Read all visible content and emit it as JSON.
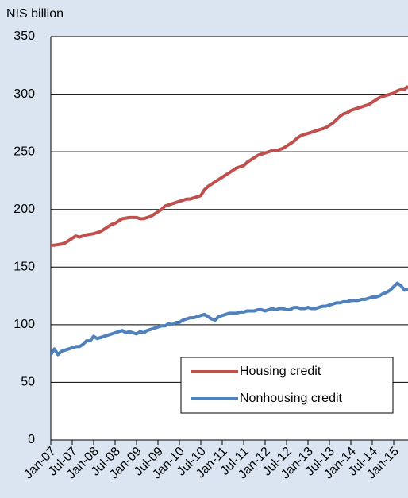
{
  "chart_data": {
    "type": "line",
    "ylabel": "NIS billion",
    "categories": [
      "Jan-07",
      null,
      null,
      null,
      null,
      null,
      "Jul-07",
      null,
      null,
      null,
      null,
      null,
      "Jan-08",
      null,
      null,
      null,
      null,
      null,
      "Jul-08",
      null,
      null,
      null,
      null,
      null,
      "Jan-09",
      null,
      null,
      null,
      null,
      null,
      "Jul-09",
      null,
      null,
      null,
      null,
      null,
      "Jan-10",
      null,
      null,
      null,
      null,
      null,
      "Jul-10",
      null,
      null,
      null,
      null,
      null,
      "Jan-11",
      null,
      null,
      null,
      null,
      null,
      "Jul-11",
      null,
      null,
      null,
      null,
      null,
      "Jan-12",
      null,
      null,
      null,
      null,
      null,
      "Jul-12",
      null,
      null,
      null,
      null,
      null,
      "Jan-13",
      null,
      null,
      null,
      null,
      null,
      "Jul-13",
      null,
      null,
      null,
      null,
      null,
      "Jan-14",
      null,
      null,
      null,
      null,
      null,
      "Jul-14",
      null,
      null,
      null,
      null,
      null,
      "Jan-15",
      null,
      null,
      null,
      null
    ],
    "series": [
      {
        "name": "Housing credit",
        "color": "#c0504d",
        "values": [
          169,
          169,
          169.5,
          170,
          171,
          173,
          175,
          177,
          176,
          177,
          178,
          178.5,
          179,
          180,
          181,
          183,
          185,
          187,
          188,
          190,
          192,
          192.5,
          193,
          193,
          193,
          192,
          192,
          193,
          194,
          196,
          198,
          200,
          203,
          204,
          205,
          206,
          207,
          208,
          209,
          209,
          210,
          211,
          212,
          217,
          220,
          222,
          224,
          226,
          228,
          230,
          232,
          234,
          236,
          237,
          238,
          241,
          243,
          245,
          247,
          248,
          249,
          250,
          251,
          251,
          252,
          253,
          255,
          257,
          259,
          262,
          264,
          265,
          266,
          267,
          268,
          269,
          270,
          271,
          273,
          275,
          278,
          281,
          283,
          284,
          286,
          287,
          288,
          289,
          290,
          291,
          293,
          295,
          297,
          298,
          299,
          300,
          301,
          303,
          304,
          304,
          307
        ]
      },
      {
        "name": "Nonhousing credit",
        "color": "#4f81bd",
        "values": [
          74,
          79,
          74,
          77,
          78,
          79,
          80,
          81,
          81,
          83,
          86,
          86,
          90,
          88,
          89,
          90,
          91,
          92,
          93,
          94,
          95,
          93,
          94,
          93,
          92,
          94,
          93,
          95,
          96,
          97,
          98,
          99,
          99,
          101,
          100,
          102,
          102,
          104,
          105,
          106,
          106,
          107,
          108,
          109,
          107,
          105,
          104,
          107,
          108,
          109,
          110,
          110,
          110,
          111,
          111,
          112,
          112,
          112,
          113,
          113,
          112,
          113,
          114,
          113,
          114,
          114,
          113,
          113,
          115,
          115,
          114,
          114,
          115,
          114,
          114,
          115,
          116,
          116,
          117,
          118,
          119,
          119,
          120,
          120,
          121,
          121,
          121,
          122,
          122,
          123,
          124,
          124,
          125,
          127,
          128,
          130,
          133,
          136,
          134,
          130,
          131
        ]
      }
    ],
    "ylim": [
      0,
      350
    ],
    "yticks": [
      0,
      50,
      100,
      150,
      200,
      250,
      300,
      350
    ],
    "grid": true,
    "legend": "lower right"
  }
}
